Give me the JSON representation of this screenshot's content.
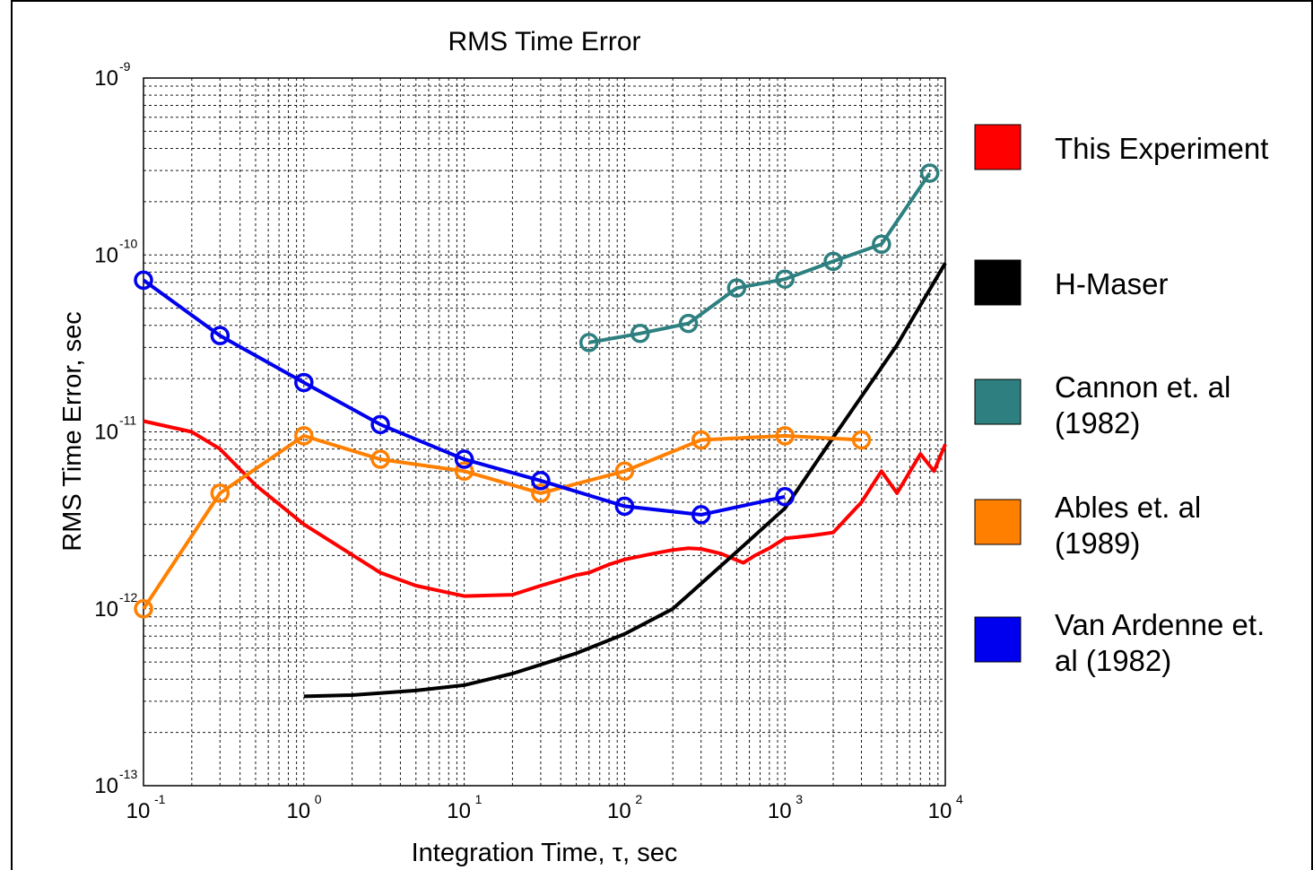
{
  "chart_data": {
    "type": "line",
    "title": "RMS Time Error",
    "xlabel": "Integration Time, τ, sec",
    "ylabel": "RMS Time Error, sec",
    "x_scale": "log",
    "y_scale": "log",
    "xlim": [
      0.1,
      10000
    ],
    "ylim": [
      1e-13,
      1e-09
    ],
    "grid": true,
    "legend_position": "right",
    "x_ticks": [
      {
        "base": "10",
        "exp": "-1",
        "value": 0.1
      },
      {
        "base": "10",
        "exp": "0",
        "value": 1
      },
      {
        "base": "10",
        "exp": "1",
        "value": 10
      },
      {
        "base": "10",
        "exp": "2",
        "value": 100
      },
      {
        "base": "10",
        "exp": "3",
        "value": 1000
      },
      {
        "base": "10",
        "exp": "4",
        "value": 10000
      }
    ],
    "y_ticks": [
      {
        "base": "10",
        "exp": "-9",
        "value": 1e-09
      },
      {
        "base": "10",
        "exp": "-10",
        "value": 1e-10
      },
      {
        "base": "10",
        "exp": "-11",
        "value": 1e-11
      },
      {
        "base": "10",
        "exp": "-12",
        "value": 1e-12
      },
      {
        "base": "10",
        "exp": "-13",
        "value": 1e-13
      }
    ],
    "series": [
      {
        "name": "This Experiment",
        "color": "#ff0000",
        "markers": false,
        "points": [
          [
            0.1,
            1.15e-11
          ],
          [
            0.2,
            1e-11
          ],
          [
            0.3,
            8e-12
          ],
          [
            0.5,
            5e-12
          ],
          [
            1.0,
            3e-12
          ],
          [
            3.0,
            1.6e-12
          ],
          [
            5.0,
            1.35e-12
          ],
          [
            10,
            1.18e-12
          ],
          [
            20,
            1.2e-12
          ],
          [
            30,
            1.35e-12
          ],
          [
            50,
            1.55e-12
          ],
          [
            60,
            1.6e-12
          ],
          [
            80,
            1.78e-12
          ],
          [
            100,
            1.9e-12
          ],
          [
            150,
            2.05e-12
          ],
          [
            200,
            2.15e-12
          ],
          [
            250,
            2.2e-12
          ],
          [
            300,
            2.18e-12
          ],
          [
            400,
            2.05e-12
          ],
          [
            550,
            1.82e-12
          ],
          [
            650,
            2e-12
          ],
          [
            800,
            2.2e-12
          ],
          [
            1000,
            2.5e-12
          ],
          [
            1500,
            2.6e-12
          ],
          [
            2000,
            2.7e-12
          ],
          [
            3000,
            4e-12
          ],
          [
            4000,
            6e-12
          ],
          [
            5000,
            4.5e-12
          ],
          [
            7000,
            7.5e-12
          ],
          [
            8500,
            6e-12
          ],
          [
            10000,
            8.5e-12
          ]
        ]
      },
      {
        "name": "H-Maser",
        "color": "#000000",
        "markers": false,
        "points": [
          [
            1,
            3.2e-13
          ],
          [
            2,
            3.25e-13
          ],
          [
            5,
            3.45e-13
          ],
          [
            10,
            3.7e-13
          ],
          [
            20,
            4.3e-13
          ],
          [
            50,
            5.6e-13
          ],
          [
            100,
            7.2e-13
          ],
          [
            200,
            1e-12
          ],
          [
            500,
            2.1e-12
          ],
          [
            1000,
            3.7e-12
          ],
          [
            2000,
            9.3e-12
          ],
          [
            5000,
            3.1e-11
          ],
          [
            10000,
            9e-11
          ]
        ]
      },
      {
        "name": "Cannon et. al (1982)",
        "color": "#2e8080",
        "markers": true,
        "points": [
          [
            60,
            3.2e-11
          ],
          [
            125,
            3.6e-11
          ],
          [
            250,
            4.1e-11
          ],
          [
            500,
            6.5e-11
          ],
          [
            1000,
            7.3e-11
          ],
          [
            2000,
            9.2e-11
          ],
          [
            4000,
            1.15e-10
          ],
          [
            8000,
            2.9e-10
          ]
        ]
      },
      {
        "name": "Ables et. al (1989)",
        "color": "#ff8000",
        "markers": true,
        "points": [
          [
            0.1,
            1e-12
          ],
          [
            0.3,
            4.5e-12
          ],
          [
            1,
            9.5e-12
          ],
          [
            3,
            7e-12
          ],
          [
            10,
            6e-12
          ],
          [
            30,
            4.5e-12
          ],
          [
            100,
            6e-12
          ],
          [
            300,
            9e-12
          ],
          [
            1000,
            9.5e-12
          ],
          [
            3000,
            9e-12
          ]
        ]
      },
      {
        "name": "Van Ardenne et. al (1982)",
        "color": "#0000ee",
        "markers": true,
        "points": [
          [
            0.1,
            7.2e-11
          ],
          [
            0.3,
            3.5e-11
          ],
          [
            1,
            1.9e-11
          ],
          [
            3,
            1.1e-11
          ],
          [
            10,
            7e-12
          ],
          [
            30,
            5.3e-12
          ],
          [
            100,
            3.8e-12
          ],
          [
            300,
            3.4e-12
          ],
          [
            1000,
            4.3e-12
          ]
        ]
      }
    ]
  },
  "legend": {
    "items": [
      {
        "label_lines": [
          "This Experiment"
        ],
        "color": "#ff0000"
      },
      {
        "label_lines": [
          "H-Maser"
        ],
        "color": "#000000"
      },
      {
        "label_lines": [
          "Cannon et. al",
          "(1982)"
        ],
        "color": "#2e8080"
      },
      {
        "label_lines": [
          "Ables et. al",
          "(1989)"
        ],
        "color": "#ff8000"
      },
      {
        "label_lines": [
          "Van Ardenne et.",
          "al (1982)"
        ],
        "color": "#0000ee"
      }
    ]
  }
}
